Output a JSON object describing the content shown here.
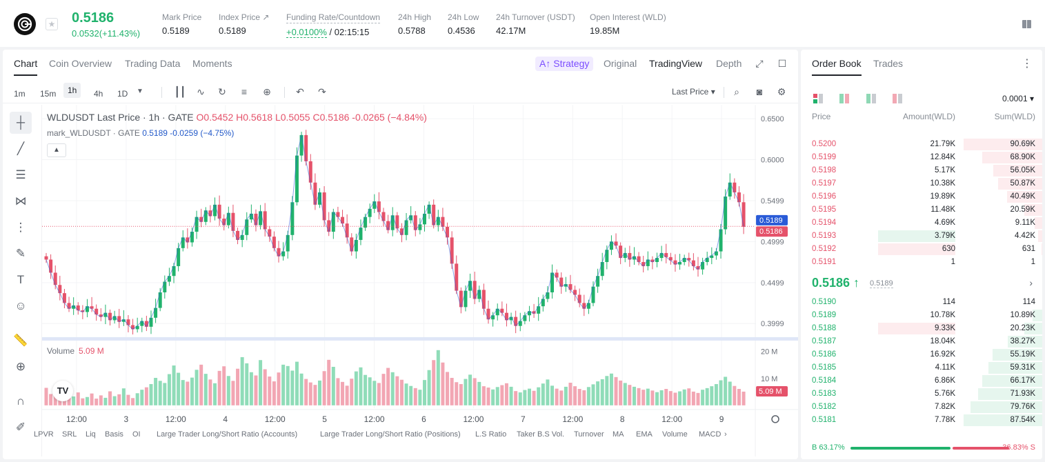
{
  "ticker": {
    "last_price": "0.5186",
    "change": "0.0532(+11.43%)",
    "stats": [
      {
        "label": "Mark Price",
        "value": "0.5189"
      },
      {
        "label": "Index Price ↗",
        "value": "0.5189"
      },
      {
        "label": "Funding Rate/Countdown",
        "value": "+0.0100%",
        "value2": "/ 02:15:15"
      },
      {
        "label": "24h High",
        "value": "0.5788"
      },
      {
        "label": "24h Low",
        "value": "0.4536"
      },
      {
        "label": "24h Turnover (USDT)",
        "value": "42.17M"
      },
      {
        "label": "Open Interest (WLD)",
        "value": "19.85M"
      }
    ]
  },
  "chart_tabs": [
    "Chart",
    "Coin Overview",
    "Trading Data",
    "Moments"
  ],
  "strategy_label": "A↑ Strategy",
  "view_tabs": [
    "Original",
    "TradingView",
    "Depth"
  ],
  "intervals": [
    "1m",
    "15m",
    "1h",
    "4h",
    "1D"
  ],
  "price_type": "Last Price",
  "legend": {
    "main": "WLDUSDT Last Price · 1h · GATE",
    "o": "O0.5452",
    "h": "H0.5618",
    "l": "L0.5055",
    "c": "C0.5186",
    "chg": "-0.0265 (−4.84%)",
    "mark": "mark_WLDUSDT · GATE",
    "mark_val": "0.5189",
    "mark_chg": "-0.0259 (−4.75%)"
  },
  "volume": {
    "label": "Volume",
    "value": "5.09 M"
  },
  "indicators": [
    "LPVR",
    "SRL",
    "Liq",
    "Basis",
    "OI",
    "Large Trader Long/Short Ratio (Accounts)",
    "Large Trader Long/Short Ratio (Positions)",
    "L.S Ratio",
    "Taker B.S Vol.",
    "Turnover",
    "MA",
    "EMA",
    "Volume",
    "MACD"
  ],
  "chart_data": {
    "type": "candlestick",
    "price_axis_labels": [
      "0.6500",
      "0.6000",
      "0.5499",
      "0.4999",
      "0.4499",
      "0.3999"
    ],
    "price_markers": [
      {
        "value": "0.5189",
        "color": "#2a5bd7"
      },
      {
        "value": "0.5186",
        "color": "#e5526a"
      }
    ],
    "volume_axis_labels": [
      "20 M",
      "10 M"
    ],
    "volume_marker": "5.09 M",
    "time_labels": [
      "12:00",
      "3",
      "12:00",
      "4",
      "12:00",
      "5",
      "12:00",
      "6",
      "12:00",
      "7",
      "12:00",
      "8",
      "12:00",
      "9"
    ],
    "ylim": [
      0.385,
      0.66
    ],
    "close": [
      0.478,
      0.462,
      0.447,
      0.437,
      0.425,
      0.418,
      0.422,
      0.416,
      0.414,
      0.421,
      0.418,
      0.411,
      0.408,
      0.413,
      0.404,
      0.409,
      0.402,
      0.405,
      0.398,
      0.393,
      0.397,
      0.403,
      0.396,
      0.407,
      0.419,
      0.438,
      0.451,
      0.458,
      0.47,
      0.492,
      0.505,
      0.499,
      0.512,
      0.53,
      0.524,
      0.538,
      0.531,
      0.545,
      0.528,
      0.52,
      0.535,
      0.513,
      0.502,
      0.508,
      0.527,
      0.534,
      0.52,
      0.537,
      0.515,
      0.506,
      0.492,
      0.482,
      0.488,
      0.508,
      0.548,
      0.605,
      0.63,
      0.598,
      0.572,
      0.545,
      0.56,
      0.526,
      0.512,
      0.536,
      0.53,
      0.522,
      0.505,
      0.488,
      0.502,
      0.517,
      0.53,
      0.54,
      0.549,
      0.536,
      0.525,
      0.514,
      0.532,
      0.516,
      0.508,
      0.526,
      0.532,
      0.514,
      0.521,
      0.534,
      0.545,
      0.52,
      0.53,
      0.518,
      0.505,
      0.473,
      0.44,
      0.42,
      0.44,
      0.452,
      0.43,
      0.441,
      0.418,
      0.405,
      0.41,
      0.418,
      0.413,
      0.404,
      0.408,
      0.397,
      0.403,
      0.41,
      0.415,
      0.412,
      0.421,
      0.43,
      0.438,
      0.462,
      0.456,
      0.445,
      0.448,
      0.441,
      0.435,
      0.425,
      0.418,
      0.425,
      0.445,
      0.458,
      0.475,
      0.49,
      0.5,
      0.495,
      0.48,
      0.486,
      0.478,
      0.482,
      0.475,
      0.47,
      0.478,
      0.475,
      0.48,
      0.486,
      0.481,
      0.477,
      0.472,
      0.475,
      0.48,
      0.477,
      0.47,
      0.466,
      0.475,
      0.48,
      0.483,
      0.488,
      0.515,
      0.555,
      0.572,
      0.56,
      0.548,
      0.518
    ],
    "volume": [
      6.5,
      4.2,
      3.8,
      5.1,
      3.6,
      2.9,
      3.3,
      4.8,
      2.6,
      3.1,
      4.4,
      2.5,
      3.7,
      2.8,
      5.2,
      3.4,
      4.1,
      6.3,
      3.9,
      2.7,
      4.5,
      5.8,
      6.7,
      7.9,
      10.2,
      9.1,
      8.3,
      11.6,
      14.8,
      12.1,
      9.4,
      8.8,
      10.3,
      13.2,
      15.1,
      11.7,
      9.6,
      8.2,
      12.8,
      14.5,
      10.9,
      9.1,
      13.6,
      17.9,
      15.6,
      12.3,
      11.1,
      16.8,
      13.4,
      10.7,
      8.9,
      12.2,
      15.1,
      14.6,
      12.9,
      16.2,
      11.8,
      9.8,
      8.5,
      7.6,
      9.2,
      12.7,
      16.9,
      14.3,
      10.1,
      8.7,
      7.3,
      9.9,
      12.6,
      14.1,
      11.3,
      10.4,
      9.1,
      8.3,
      11.7,
      13.9,
      12.3,
      10.8,
      9.5,
      8.1,
      7.2,
      6.4,
      5.8,
      9.4,
      13.1,
      16.8,
      20.5,
      15.9,
      12.4,
      10.2,
      8.6,
      7.9,
      9.8,
      11.4,
      10.1,
      8.7,
      7.1,
      6.6,
      5.9,
      6.8,
      7.5,
      8.2,
      6.9,
      5.3,
      4.8,
      5.7,
      6.2,
      5.4,
      6.7,
      8.1,
      9.6,
      7.3,
      6.2,
      5.5,
      6.9,
      8.4,
      7.1,
      6.1,
      5.6,
      6.8,
      7.8,
      8.9,
      9.7,
      10.9,
      11.8,
      10.5,
      9.2,
      8.3,
      7.6,
      6.9,
      6.4,
      5.8,
      6.2,
      5.5,
      4.9,
      5.6,
      6.1,
      5.3,
      4.7,
      5.2,
      5.9,
      6.3,
      5.1,
      4.6,
      5.8,
      6.4,
      7.1,
      7.9,
      9.3,
      10.6,
      8.8,
      7.2,
      6.1,
      5.09
    ]
  },
  "order_book": {
    "tabs": [
      "Order Book",
      "Trades"
    ],
    "precision": "0.0001",
    "headers": {
      "price": "Price",
      "amount": "Amount(WLD)",
      "sum": "Sum(WLD)"
    },
    "asks": [
      {
        "p": "0.5200",
        "a": "21.79K",
        "s": "90.69K",
        "depth": 1.0,
        "own": 0
      },
      {
        "p": "0.5199",
        "a": "12.84K",
        "s": "68.90K",
        "depth": 0.76,
        "own": 0
      },
      {
        "p": "0.5198",
        "a": "5.17K",
        "s": "56.05K",
        "depth": 0.62,
        "own": 0
      },
      {
        "p": "0.5197",
        "a": "10.38K",
        "s": "50.87K",
        "depth": 0.56,
        "own": 0
      },
      {
        "p": "0.5196",
        "a": "19.89K",
        "s": "40.49K",
        "depth": 0.45,
        "own": 0
      },
      {
        "p": "0.5195",
        "a": "11.48K",
        "s": "20.59K",
        "depth": 0.23,
        "own": 0
      },
      {
        "p": "0.5194",
        "a": "4.69K",
        "s": "9.11K",
        "depth": 0.1,
        "own": 0
      },
      {
        "p": "0.5193",
        "a": "3.79K",
        "s": "4.42K",
        "depth": 0.05,
        "own": 1
      },
      {
        "p": "0.5192",
        "a": "630",
        "s": "631",
        "depth": 0.01,
        "own": 2
      },
      {
        "p": "0.5191",
        "a": "1",
        "s": "1",
        "depth": 0.0,
        "own": 0
      }
    ],
    "mid_price": "0.5186 ↑",
    "mid_mark": "0.5189",
    "bids": [
      {
        "p": "0.5190",
        "a": "114",
        "s": "114",
        "depth": 0.0,
        "own": 0
      },
      {
        "p": "0.5189",
        "a": "10.78K",
        "s": "10.89K",
        "depth": 0.12,
        "own": 0
      },
      {
        "p": "0.5188",
        "a": "9.33K",
        "s": "20.23K",
        "depth": 0.23,
        "own": 2
      },
      {
        "p": "0.5187",
        "a": "18.04K",
        "s": "38.27K",
        "depth": 0.44,
        "own": 0
      },
      {
        "p": "0.5186",
        "a": "16.92K",
        "s": "55.19K",
        "depth": 0.63,
        "own": 0
      },
      {
        "p": "0.5185",
        "a": "4.11K",
        "s": "59.31K",
        "depth": 0.68,
        "own": 0
      },
      {
        "p": "0.5184",
        "a": "6.86K",
        "s": "66.17K",
        "depth": 0.76,
        "own": 0
      },
      {
        "p": "0.5183",
        "a": "5.76K",
        "s": "71.93K",
        "depth": 0.82,
        "own": 0
      },
      {
        "p": "0.5182",
        "a": "7.82K",
        "s": "79.76K",
        "depth": 0.91,
        "own": 0
      },
      {
        "p": "0.5181",
        "a": "7.78K",
        "s": "87.54K",
        "depth": 1.0,
        "own": 0
      }
    ],
    "buy_ratio": "B 63.17%",
    "sell_ratio": "36.83% S",
    "buy_fraction": 0.6317
  },
  "colors": {
    "up": "#20b26c",
    "down": "#e5526a",
    "blue": "#2a5bd7"
  }
}
